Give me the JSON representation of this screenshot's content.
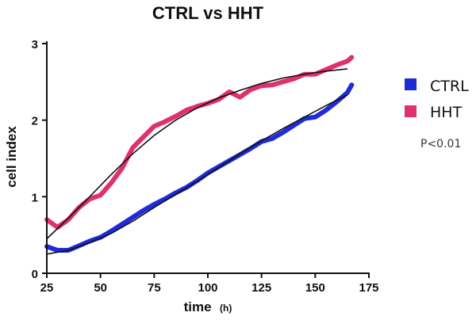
{
  "chart_data": {
    "type": "line",
    "title": "CTRL vs HHT",
    "xlabel": "time",
    "xunit": "(h)",
    "ylabel": "cell index",
    "xlim": [
      25,
      175
    ],
    "ylim": [
      0,
      3
    ],
    "xticks": [
      "25",
      "50",
      "75",
      "100",
      "125",
      "150",
      "175"
    ],
    "yticks": [
      "0",
      "1",
      "2",
      "3"
    ],
    "grid": false,
    "legend_position": "right",
    "annotation": "P<0.01",
    "series": [
      {
        "name": "CTRL",
        "color": "#1f2bd6",
        "x": [
          25,
          30,
          35,
          40,
          45,
          50,
          55,
          60,
          65,
          70,
          75,
          80,
          85,
          90,
          95,
          100,
          105,
          110,
          115,
          120,
          125,
          130,
          135,
          140,
          145,
          150,
          155,
          160,
          165,
          167
        ],
        "y": [
          0.35,
          0.3,
          0.3,
          0.36,
          0.42,
          0.47,
          0.55,
          0.64,
          0.73,
          0.82,
          0.9,
          0.97,
          1.05,
          1.12,
          1.21,
          1.31,
          1.39,
          1.47,
          1.55,
          1.63,
          1.72,
          1.76,
          1.84,
          1.93,
          2.02,
          2.04,
          2.13,
          2.24,
          2.36,
          2.46
        ]
      },
      {
        "name": "HHT",
        "color": "#e0306e",
        "x": [
          25,
          30,
          35,
          40,
          45,
          50,
          55,
          60,
          65,
          70,
          75,
          80,
          85,
          90,
          95,
          100,
          105,
          110,
          115,
          120,
          125,
          130,
          135,
          140,
          145,
          150,
          155,
          160,
          165,
          167
        ],
        "y": [
          0.7,
          0.6,
          0.7,
          0.86,
          0.97,
          1.02,
          1.18,
          1.37,
          1.64,
          1.78,
          1.92,
          1.98,
          2.05,
          2.13,
          2.18,
          2.22,
          2.27,
          2.37,
          2.3,
          2.4,
          2.45,
          2.46,
          2.5,
          2.54,
          2.6,
          2.6,
          2.66,
          2.72,
          2.77,
          2.82
        ]
      }
    ],
    "fit_curves": [
      {
        "color": "#111111",
        "x": [
          25,
          35,
          45,
          55,
          65,
          75,
          85,
          95,
          105,
          115,
          125,
          135,
          145,
          155,
          165
        ],
        "y": [
          0.25,
          0.3,
          0.4,
          0.52,
          0.68,
          0.86,
          1.03,
          1.2,
          1.38,
          1.56,
          1.73,
          1.89,
          2.04,
          2.19,
          2.33
        ]
      },
      {
        "color": "#111111",
        "x": [
          25,
          35,
          45,
          55,
          65,
          75,
          85,
          95,
          105,
          115,
          125,
          135,
          145,
          155,
          165
        ],
        "y": [
          0.45,
          0.72,
          1.0,
          1.29,
          1.56,
          1.8,
          2.0,
          2.16,
          2.29,
          2.39,
          2.48,
          2.55,
          2.6,
          2.64,
          2.67
        ]
      }
    ]
  }
}
